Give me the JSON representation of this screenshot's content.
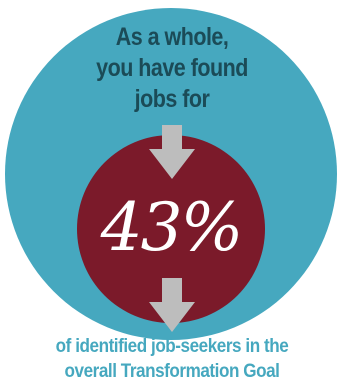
{
  "headline": {
    "line1": "As a whole,",
    "line2": "you have found",
    "line3": "jobs for"
  },
  "stat": {
    "value": "43%"
  },
  "caption": {
    "line1": "of identified job-seekers in the",
    "line2": "overall Transformation Goal"
  },
  "colors": {
    "outer_circle": "#46a8bf",
    "inner_circle": "#7b1a2a",
    "headline_text": "#1b4b57",
    "caption_text": "#46a8bf",
    "arrow": "#bdbdbd",
    "stat_text": "#ffffff"
  },
  "icons": {
    "top_arrow": "down-arrow-icon",
    "bottom_arrow": "down-arrow-icon"
  }
}
